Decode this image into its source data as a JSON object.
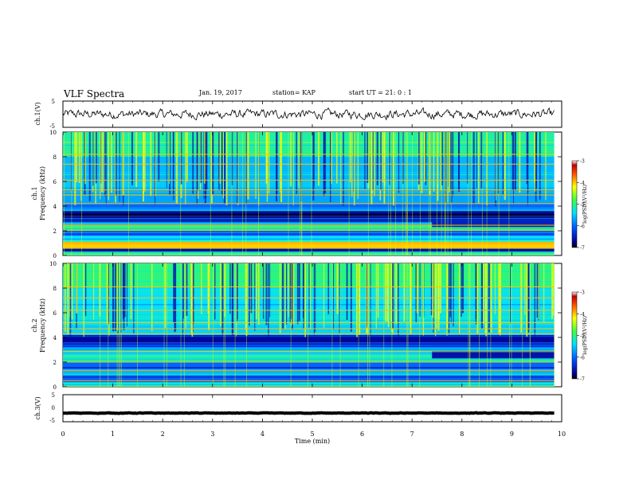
{
  "header": {
    "title": "VLF Spectra",
    "date": "Jan. 19, 2017",
    "station": "station= KAP",
    "start": "start UT =  21: 0 : 1"
  },
  "chart_data": [
    {
      "type": "line",
      "name": "ch1-waveform",
      "ylabel": "ch.1(V)",
      "ylim": [
        -5,
        5
      ],
      "yticks": [
        "5",
        "-5"
      ],
      "xlim": [
        0,
        10
      ],
      "x_end": 9.85,
      "level": 0.0,
      "noise_amplitude": 1.6
    },
    {
      "type": "heatmap",
      "name": "ch1-spectrogram",
      "ylabel": [
        "ch.1",
        "Frequency (kHz)"
      ],
      "ylim": [
        0,
        10
      ],
      "yticks": [
        "0",
        "2",
        "4",
        "6",
        "8",
        "10"
      ],
      "xlim": [
        0,
        10
      ],
      "x_end": 9.85,
      "color_range": [
        -7,
        -3
      ],
      "bands_khz": [
        {
          "f": [
            0,
            0.3
          ],
          "level": -5.2
        },
        {
          "f": [
            0.3,
            0.55
          ],
          "level": -6.6
        },
        {
          "f": [
            0.55,
            1.1
          ],
          "level": -4.0
        },
        {
          "f": [
            1.1,
            1.6
          ],
          "level": -5.4
        },
        {
          "f": [
            1.6,
            2.0
          ],
          "level": -6.2
        },
        {
          "f": [
            2.0,
            2.4
          ],
          "level": -5.0
        },
        {
          "f": [
            2.4,
            2.7
          ],
          "level": -5.6
        },
        {
          "f": [
            2.7,
            3.2
          ],
          "level": -6.5
        },
        {
          "f": [
            3.2,
            3.6
          ],
          "level": -6.8
        },
        {
          "f": [
            3.6,
            4.2
          ],
          "level": -6.0
        },
        {
          "f": [
            4.2,
            5.2
          ],
          "level": -5.7
        },
        {
          "f": [
            5.2,
            6.0
          ],
          "level": -5.5
        },
        {
          "f": [
            6.0,
            8.0
          ],
          "level": -5.6
        },
        {
          "f": [
            8.0,
            10.0
          ],
          "level": -5.1
        }
      ],
      "lines_khz": [
        0.8,
        1.0,
        2.05,
        2.45,
        4.2,
        4.9,
        5.3,
        6.1,
        7.4,
        8.2
      ],
      "segment_change": {
        "t": 7.4,
        "f": [
          2.3,
          2.9
        ],
        "level": -6.5
      }
    },
    {
      "type": "heatmap",
      "name": "ch2-spectrogram",
      "ylabel": [
        "ch.2",
        "Frequency (kHz)"
      ],
      "ylim": [
        0,
        10
      ],
      "yticks": [
        "0",
        "2",
        "4",
        "6",
        "8",
        "10"
      ],
      "xlim": [
        0,
        10
      ],
      "x_end": 9.85,
      "color_range": [
        -7,
        -3
      ],
      "bands_khz": [
        {
          "f": [
            0,
            0.4
          ],
          "level": -5.3
        },
        {
          "f": [
            0.4,
            0.9
          ],
          "level": -6.2
        },
        {
          "f": [
            0.9,
            1.4
          ],
          "level": -5.6
        },
        {
          "f": [
            1.4,
            2.0
          ],
          "level": -6.0
        },
        {
          "f": [
            2.0,
            2.6
          ],
          "level": -5.2
        },
        {
          "f": [
            2.6,
            3.2
          ],
          "level": -5.5
        },
        {
          "f": [
            3.2,
            3.6
          ],
          "level": -6.4
        },
        {
          "f": [
            3.6,
            4.2
          ],
          "level": -6.7
        },
        {
          "f": [
            4.2,
            5.0
          ],
          "level": -5.5
        },
        {
          "f": [
            5.0,
            6.0
          ],
          "level": -5.3
        },
        {
          "f": [
            6.0,
            8.0
          ],
          "level": -5.4
        },
        {
          "f": [
            8.0,
            10.0
          ],
          "level": -5.0
        }
      ],
      "lines_khz": [
        0.5,
        1.3,
        2.0,
        2.85,
        4.3,
        4.7,
        5.2,
        6.2,
        7.2,
        8.1
      ],
      "segment_change": {
        "t": 7.4,
        "f": [
          2.3,
          2.9
        ],
        "level": -6.6
      }
    },
    {
      "type": "line",
      "name": "ch3-waveform",
      "ylabel": "ch.3(V)",
      "ylim": [
        -5,
        5
      ],
      "yticks": [
        "5",
        "0",
        "-5"
      ],
      "xlim": [
        0,
        10
      ],
      "x_end": 9.85,
      "level": -1.8,
      "noise_amplitude": 0.1
    }
  ],
  "xaxis": {
    "label": "Time (min)",
    "ticks": [
      "0",
      "1",
      "2",
      "3",
      "4",
      "5",
      "6",
      "7",
      "8",
      "9",
      "10"
    ]
  },
  "colorbar": {
    "label": "log(PSD)(V²/Hz)",
    "ticks": [
      "-3",
      "-4",
      "-5",
      "-6",
      "-7"
    ],
    "range": [
      -7,
      -3
    ]
  }
}
